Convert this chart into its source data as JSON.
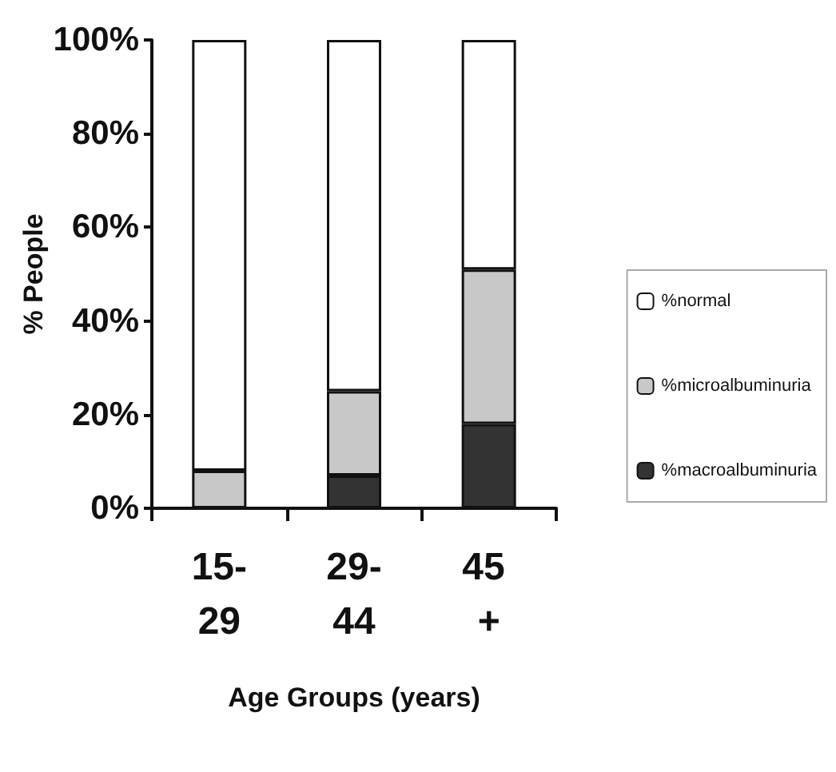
{
  "chart_data": {
    "type": "bar",
    "stacked": true,
    "xlabel": "Age Groups (years)",
    "ylabel": "% People",
    "categories": [
      "15-29",
      "29-44",
      "45 +"
    ],
    "series": [
      {
        "name": "%macroalbuminuria",
        "color": "#333333",
        "values": [
          0,
          7,
          18
        ]
      },
      {
        "name": "%microalbuminuria",
        "color": "#c8c8c8",
        "values": [
          8,
          18,
          33
        ]
      },
      {
        "name": "%normal",
        "color": "#ffffff",
        "values": [
          92,
          75,
          49
        ]
      }
    ],
    "ylim": [
      0,
      100
    ],
    "yticks": [
      {
        "value": 0,
        "label": "0%"
      },
      {
        "value": 20,
        "label": "20%"
      },
      {
        "value": 40,
        "label": "40%"
      },
      {
        "value": 60,
        "label": "60%"
      },
      {
        "value": 80,
        "label": "80%"
      },
      {
        "value": 100,
        "label": "100%"
      }
    ],
    "grid": false,
    "legend": "right"
  }
}
